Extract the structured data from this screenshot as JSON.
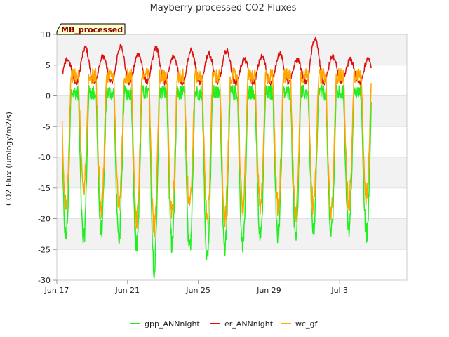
{
  "chart_data": {
    "type": "line",
    "title": "Mayberry processed CO2 Fluxes",
    "xlabel": "",
    "ylabel": "CO2 Flux (urology/m2/s)",
    "ylim": [
      -30,
      10
    ],
    "yticks": [
      -30,
      -25,
      -20,
      -15,
      -10,
      -5,
      0,
      5,
      10
    ],
    "xlim": [
      0,
      19.8
    ],
    "xticks": [
      {
        "value": 0,
        "label": "Jun 17"
      },
      {
        "value": 4,
        "label": "Jun 21"
      },
      {
        "value": 8,
        "label": "Jun 25"
      },
      {
        "value": 12,
        "label": "Jun 29"
      },
      {
        "value": 16,
        "label": "Jul 3"
      }
    ],
    "badge": "MB_processed",
    "grid": "horizontal-bands",
    "legend_position": "bottom",
    "x_unit": "days since Jun 17",
    "data_range": [
      0.3,
      17.8
    ],
    "series": [
      {
        "name": "gpp_ANNnight",
        "color": "#22ee22",
        "daily_min": [
          -23,
          -23.5,
          -22,
          -23,
          -24.5,
          -28,
          -24,
          -25,
          -26,
          -24.5,
          -24.5,
          -23,
          -22.5,
          -22.5,
          -21.5,
          -22.5,
          -21.5,
          -22.5
        ],
        "day_max": 1
      },
      {
        "name": "er_ANNnight",
        "color": "#dd1111",
        "daily_max": [
          6,
          8,
          6.5,
          8.2,
          7,
          8,
          6.5,
          7.5,
          7,
          7.5,
          6,
          6.5,
          7,
          6,
          9.5,
          6.5,
          6,
          6
        ],
        "night_min": 2
      },
      {
        "name": "wc_gf",
        "color": "#ffa500",
        "daily_min": [
          -18,
          -15,
          -18,
          -17,
          -20,
          -21.5,
          -19,
          -18.5,
          -20,
          -20,
          -18,
          -17.5,
          -18,
          -19,
          -18,
          -19,
          -17.5,
          -16.5
        ],
        "night_max": 4.5
      }
    ]
  }
}
